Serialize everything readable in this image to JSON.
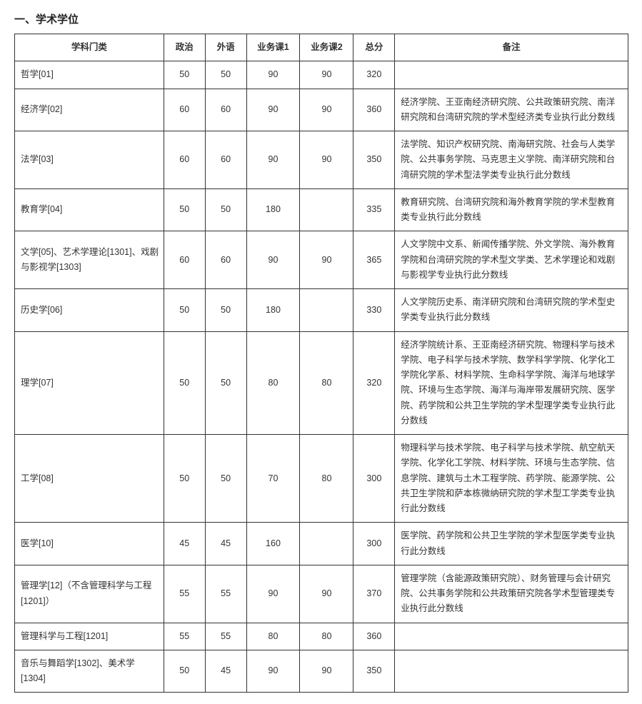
{
  "title": "一、学术学位",
  "columns": [
    "学科门类",
    "政治",
    "外语",
    "业务课1",
    "业务课2",
    "总分",
    "备注"
  ],
  "rows": [
    {
      "subj": "哲学[01]",
      "c": [
        "50",
        "50",
        "90",
        "90",
        "320"
      ],
      "note": ""
    },
    {
      "subj": "经济学[02]",
      "c": [
        "60",
        "60",
        "90",
        "90",
        "360"
      ],
      "note": "经济学院、王亚南经济研究院、公共政策研究院、南洋研究院和台湾研究院的学术型经济类专业执行此分数线"
    },
    {
      "subj": "法学[03]",
      "c": [
        "60",
        "60",
        "90",
        "90",
        "350"
      ],
      "note": "法学院、知识产权研究院、南海研究院、社会与人类学院、公共事务学院、马克思主义学院、南洋研究院和台湾研究院的学术型法学类专业执行此分数线"
    },
    {
      "subj": "教育学[04]",
      "c": [
        "50",
        "50",
        "180",
        "",
        "335"
      ],
      "note": "教育研究院、台湾研究院和海外教育学院的学术型教育类专业执行此分数线"
    },
    {
      "subj": "文学[05]、艺术学理论[1301]、戏剧与影视学[1303]",
      "c": [
        "60",
        "60",
        "90",
        "90",
        "365"
      ],
      "note": "人文学院中文系、新闻传播学院、外文学院、海外教育学院和台湾研究院的学术型文学类、艺术学理论和戏剧与影视学专业执行此分数线"
    },
    {
      "subj": "历史学[06]",
      "c": [
        "50",
        "50",
        "180",
        "",
        "330"
      ],
      "note": "人文学院历史系、南洋研究院和台湾研究院的学术型史学类专业执行此分数线"
    },
    {
      "subj": "理学[07]",
      "c": [
        "50",
        "50",
        "80",
        "80",
        "320"
      ],
      "note": "经济学院统计系、王亚南经济研究院、物理科学与技术学院、电子科学与技术学院、数学科学学院、化学化工学院化学系、材料学院、生命科学学院、海洋与地球学院、环境与生态学院、海洋与海岸带发展研究院、医学院、药学院和公共卫生学院的学术型理学类专业执行此分数线"
    },
    {
      "subj": "工学[08]",
      "c": [
        "50",
        "50",
        "70",
        "80",
        "300"
      ],
      "note": "物理科学与技术学院、电子科学与技术学院、航空航天学院、化学化工学院、材料学院、环境与生态学院、信息学院、建筑与土木工程学院、药学院、能源学院、公共卫生学院和萨本栋微纳研究院的学术型工学类专业执行此分数线"
    },
    {
      "subj": "医学[10]",
      "c": [
        "45",
        "45",
        "160",
        "",
        "300"
      ],
      "note": "医学院、药学院和公共卫生学院的学术型医学类专业执行此分数线"
    },
    {
      "subj": "管理学[12]（不含管理科学与工程[1201]）",
      "c": [
        "55",
        "55",
        "90",
        "90",
        "370"
      ],
      "note": "管理学院（含能源政策研究院）、财务管理与会计研究院、公共事务学院和公共政策研究院各学术型管理类专业执行此分数线"
    },
    {
      "subj": "管理科学与工程[1201]",
      "c": [
        "55",
        "55",
        "80",
        "80",
        "360"
      ],
      "note": ""
    },
    {
      "subj": "音乐与舞蹈学[1302]、美术学[1304]",
      "c": [
        "50",
        "45",
        "90",
        "90",
        "350"
      ],
      "note": ""
    }
  ]
}
